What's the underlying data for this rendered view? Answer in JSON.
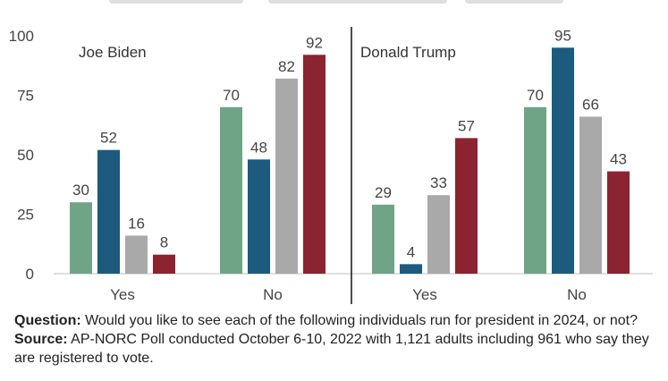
{
  "chart_data": {
    "type": "bar",
    "ylim": [
      0,
      100
    ],
    "yticks": [
      0,
      25,
      50,
      75,
      100
    ],
    "grid": false,
    "colors": [
      "#6fa486",
      "#1c5a7e",
      "#a9a9a9",
      "#8c2331"
    ],
    "panels": [
      {
        "title": "Joe Biden",
        "categories": [
          "Yes",
          "No"
        ],
        "series": [
          {
            "values": [
              30,
              70
            ]
          },
          {
            "values": [
              52,
              48
            ]
          },
          {
            "values": [
              16,
              82
            ]
          },
          {
            "values": [
              8,
              92
            ]
          }
        ]
      },
      {
        "title": "Donald Trump",
        "categories": [
          "Yes",
          "No"
        ],
        "series": [
          {
            "values": [
              29,
              70
            ]
          },
          {
            "values": [
              4,
              95
            ]
          },
          {
            "values": [
              33,
              66
            ]
          },
          {
            "values": [
              57,
              43
            ]
          }
        ]
      }
    ]
  },
  "notes": {
    "question_label": "Question:",
    "question_text": " Would you like to see each of the following individuals run for president in 2024, or not?",
    "source_label": "Source:",
    "source_text": " AP-NORC Poll conducted October 6-10, 2022 with 1,121 adults  including 961 who say they are registered to vote."
  }
}
